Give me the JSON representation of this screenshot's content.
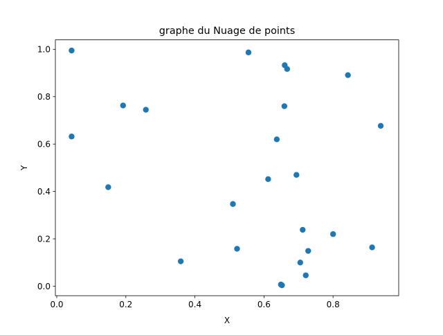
{
  "chart_data": {
    "type": "scatter",
    "title": "graphe du Nuage de points",
    "xlabel": "X",
    "ylabel": "Y",
    "xlim": [
      -0.004,
      0.99
    ],
    "ylim": [
      -0.04,
      1.04
    ],
    "x_ticks": [
      "0.0",
      "0.2",
      "0.4",
      "0.6",
      "0.8"
    ],
    "y_ticks": [
      "0.0",
      "0.2",
      "0.4",
      "0.6",
      "0.8",
      "1.0"
    ],
    "grid": false,
    "legend": "none",
    "marker_color": "#1f77b4",
    "series": [
      {
        "x": [
          0.043,
          0.555,
          0.66,
          0.667,
          0.843,
          0.192,
          0.258,
          0.659,
          0.043,
          0.938,
          0.637,
          0.694,
          0.612,
          0.149,
          0.51,
          0.712,
          0.8,
          0.522,
          0.913,
          0.728,
          0.359,
          0.705,
          0.721,
          0.649,
          0.652
        ],
        "y": [
          0.995,
          0.987,
          0.933,
          0.917,
          0.891,
          0.763,
          0.745,
          0.76,
          0.632,
          0.677,
          0.62,
          0.47,
          0.452,
          0.418,
          0.347,
          0.238,
          0.22,
          0.158,
          0.164,
          0.149,
          0.105,
          0.1,
          0.046,
          0.007,
          0.004
        ]
      }
    ]
  }
}
